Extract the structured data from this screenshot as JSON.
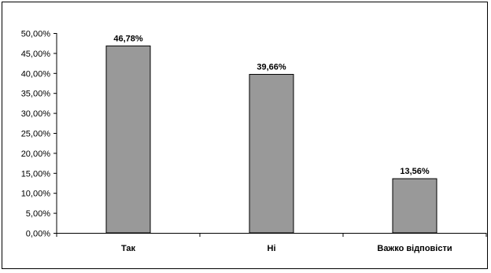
{
  "chart_data": {
    "type": "bar",
    "categories": [
      "Так",
      "Ні",
      "Важко відповісти"
    ],
    "values": [
      46.78,
      39.66,
      13.56
    ],
    "data_labels": [
      "46,78%",
      "39,66%",
      "13,56%"
    ],
    "ylim": [
      0,
      50
    ],
    "y_ticks": [
      0,
      5,
      10,
      15,
      20,
      25,
      30,
      35,
      40,
      45,
      50
    ],
    "y_tick_labels": [
      "0,00%",
      "5,00%",
      "10,00%",
      "15,00%",
      "20,00%",
      "25,00%",
      "30,00%",
      "35,00%",
      "40,00%",
      "45,00%",
      "50,00%"
    ],
    "title": "",
    "xlabel": "",
    "ylabel": "",
    "grid": false,
    "legend": "none",
    "bar_color": "#999999",
    "bar_edge_color": "#000000"
  }
}
